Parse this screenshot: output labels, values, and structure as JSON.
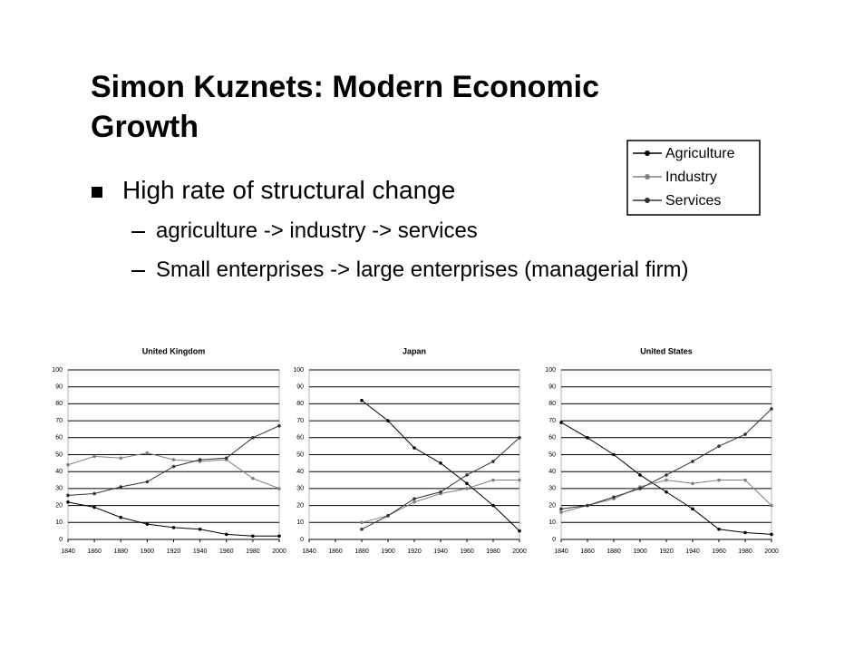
{
  "slide": {
    "title": "Simon Kuznets: Modern Economic Growth",
    "bullet": "High rate of structural change",
    "sub_bullets": [
      "agriculture -> industry -> services",
      "Small enterprises -> large enterprises (managerial firm)"
    ]
  },
  "legend": {
    "series": [
      {
        "name": "Agriculture",
        "color": "#000000"
      },
      {
        "name": "Industry",
        "color": "#808080"
      },
      {
        "name": "Services",
        "color": "#333333"
      }
    ]
  },
  "chart_data": [
    {
      "type": "line",
      "title": "United Kingdom",
      "x": [
        1840,
        1860,
        1880,
        1900,
        1920,
        1940,
        1960,
        1980,
        2000
      ],
      "xlim": [
        1840,
        2000
      ],
      "xticks": [
        1840,
        1860,
        1880,
        1900,
        1920,
        1940,
        1960,
        1980,
        2000
      ],
      "ylim": [
        0,
        100
      ],
      "yticks": [
        0,
        10,
        20,
        30,
        40,
        50,
        60,
        70,
        80,
        90,
        100
      ],
      "grid": true,
      "series": [
        {
          "values": [
            22,
            19,
            13,
            9,
            7,
            6,
            3,
            2,
            2
          ]
        },
        {
          "values": [
            44,
            49,
            48,
            51,
            47,
            46,
            47,
            36,
            30
          ]
        },
        {
          "values": [
            26,
            27,
            31,
            34,
            43,
            47,
            48,
            60,
            67
          ]
        }
      ]
    },
    {
      "type": "line",
      "title": "Japan",
      "x": [
        1840,
        1860,
        1880,
        1900,
        1920,
        1940,
        1960,
        1980,
        2000
      ],
      "xlim": [
        1840,
        2000
      ],
      "xticks": [
        1840,
        1860,
        1880,
        1900,
        1920,
        1940,
        1960,
        1980,
        2000
      ],
      "ylim": [
        0,
        100
      ],
      "yticks": [
        0,
        10,
        20,
        30,
        40,
        50,
        60,
        70,
        80,
        90,
        100
      ],
      "grid": true,
      "series": [
        {
          "values": [
            null,
            null,
            82,
            70,
            54,
            45,
            33,
            20,
            5
          ]
        },
        {
          "values": [
            null,
            null,
            10,
            14,
            22,
            27,
            30,
            35,
            35
          ]
        },
        {
          "values": [
            null,
            null,
            6,
            14,
            24,
            28,
            38,
            46,
            60
          ]
        }
      ]
    },
    {
      "type": "line",
      "title": "United States",
      "x": [
        1840,
        1860,
        1880,
        1900,
        1920,
        1940,
        1960,
        1980,
        2000
      ],
      "xlim": [
        1840,
        2000
      ],
      "xticks": [
        1840,
        1860,
        1880,
        1900,
        1920,
        1940,
        1960,
        1980,
        2000
      ],
      "ylim": [
        0,
        100
      ],
      "yticks": [
        0,
        10,
        20,
        30,
        40,
        50,
        60,
        70,
        80,
        90,
        100
      ],
      "grid": true,
      "series": [
        {
          "values": [
            69,
            60,
            50,
            38,
            28,
            18,
            6,
            4,
            3
          ]
        },
        {
          "values": [
            16,
            20,
            24,
            31,
            35,
            33,
            35,
            35,
            20
          ]
        },
        {
          "values": [
            18,
            20,
            25,
            30,
            38,
            46,
            55,
            62,
            77
          ]
        }
      ]
    }
  ]
}
